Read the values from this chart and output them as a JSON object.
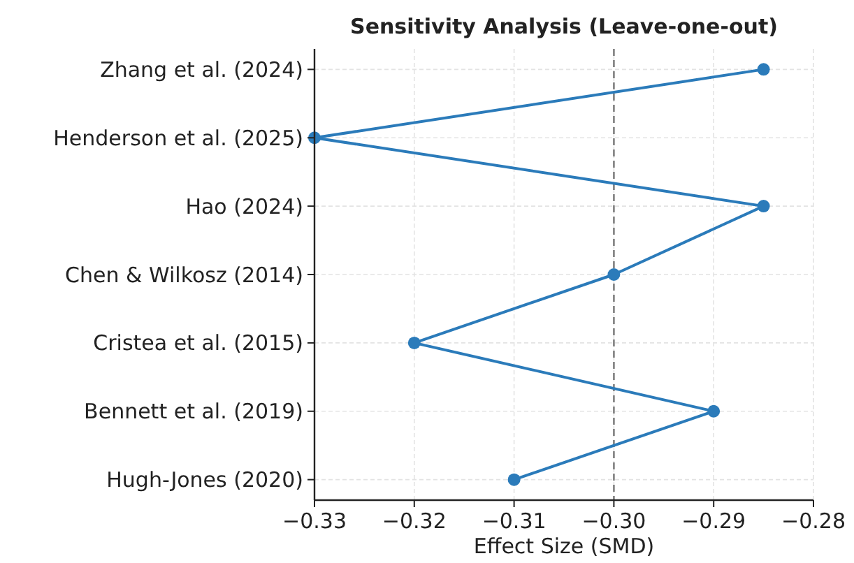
{
  "chart_data": {
    "type": "line",
    "title": "Sensitivity Analysis (Leave-one-out)",
    "xlabel": "Effect Size (SMD)",
    "orientation": "horizontal",
    "categories": [
      "Zhang et al. (2024)",
      "Henderson et al. (2025)",
      "Hao (2024)",
      "Chen & Wilkosz (2014)",
      "Cristea et al. (2015)",
      "Bennett et al. (2019)",
      "Hugh-Jones (2020)"
    ],
    "series": [
      {
        "color": "#2b7bba",
        "values": [
          -0.285,
          -0.33,
          -0.285,
          -0.3,
          -0.32,
          -0.29,
          -0.31
        ]
      }
    ],
    "xlim": [
      -0.33,
      -0.28
    ],
    "xticks": [
      {
        "value": -0.33,
        "label": "−0.33"
      },
      {
        "value": -0.32,
        "label": "−0.32"
      },
      {
        "value": -0.31,
        "label": "−0.31"
      },
      {
        "value": -0.3,
        "label": "−0.30"
      },
      {
        "value": -0.29,
        "label": "−0.29"
      },
      {
        "value": -0.28,
        "label": "−0.28"
      }
    ],
    "ref_lines": [
      {
        "axis": "x",
        "value": -0.3,
        "color": "#808080",
        "line_style": "dashed"
      }
    ],
    "grid": true,
    "marker": "circle",
    "line_style": "solid"
  }
}
